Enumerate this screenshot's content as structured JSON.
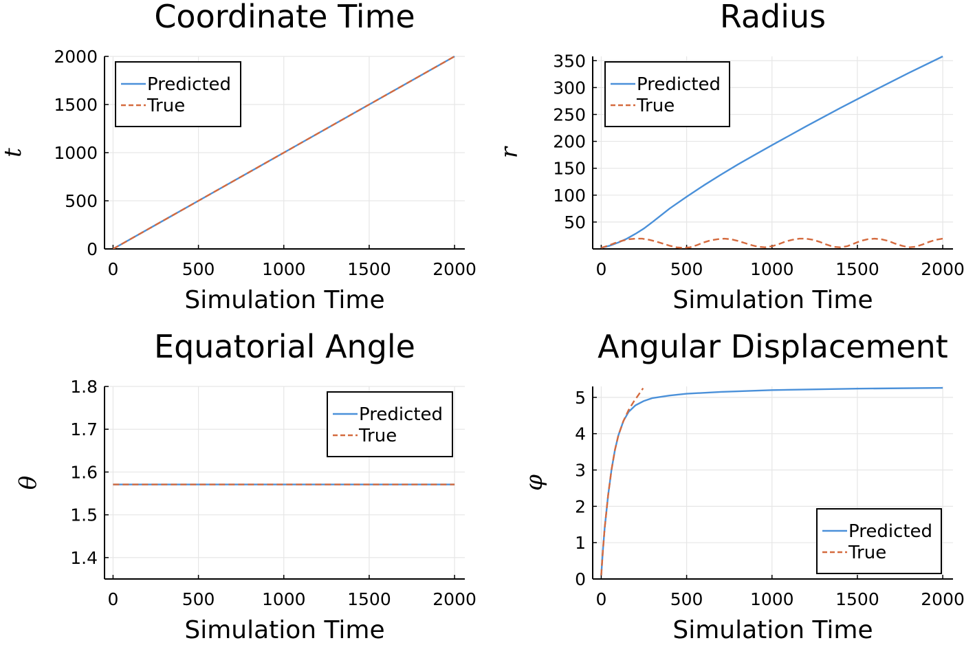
{
  "chart_data": [
    {
      "type": "line",
      "title": "Coordinate Time",
      "xlabel": "Simulation Time",
      "ylabel": "t",
      "xlim": [
        -50,
        2060
      ],
      "ylim": [
        0,
        2000
      ],
      "xticks": [
        0,
        500,
        1000,
        1500,
        2000
      ],
      "yticks": [
        0,
        500,
        1000,
        1500,
        2000
      ],
      "grid": true,
      "legend_position": "top-left",
      "series": [
        {
          "name": "Predicted",
          "color": "#4a90d9",
          "dash": "solid",
          "x": [
            0,
            500,
            1000,
            1500,
            2000
          ],
          "y": [
            0,
            500,
            1000,
            1500,
            2000
          ]
        },
        {
          "name": "True",
          "color": "#d46a3e",
          "dash": "dashed",
          "x": [
            0,
            500,
            1000,
            1500,
            2000
          ],
          "y": [
            0,
            500,
            1000,
            1500,
            2000
          ]
        }
      ]
    },
    {
      "type": "line",
      "title": "Radius",
      "xlabel": "Simulation Time",
      "ylabel": "r",
      "xlim": [
        -50,
        2060
      ],
      "ylim": [
        0,
        358
      ],
      "xticks": [
        0,
        500,
        1000,
        1500,
        2000
      ],
      "yticks": [
        50,
        100,
        150,
        200,
        250,
        300,
        350
      ],
      "grid": true,
      "legend_position": "top-left",
      "series": [
        {
          "name": "Predicted",
          "color": "#4a90d9",
          "dash": "solid",
          "x": [
            0,
            50,
            100,
            150,
            200,
            250,
            300,
            400,
            500,
            600,
            700,
            800,
            900,
            1000,
            1200,
            1400,
            1600,
            1800,
            2000
          ],
          "y": [
            2,
            6,
            12,
            19,
            28,
            38,
            50,
            75,
            97,
            118,
            138,
            157,
            175,
            193,
            228,
            262,
            295,
            327,
            358
          ]
        },
        {
          "name": "True",
          "color": "#d46a3e",
          "dash": "dashed",
          "x": [
            0,
            40,
            80,
            120,
            160,
            200,
            240,
            280,
            320,
            360,
            400,
            440,
            480,
            520,
            560,
            600,
            640,
            680,
            720,
            760,
            800,
            840,
            880,
            920,
            960,
            1000,
            1040,
            1080,
            1120,
            1160,
            1200,
            1240,
            1280,
            1320,
            1360,
            1400,
            1440,
            1480,
            1520,
            1560,
            1600,
            1640,
            1680,
            1720,
            1760,
            1800,
            1840,
            1880,
            1920,
            1960,
            2000
          ],
          "y": [
            2,
            6,
            11,
            15,
            18,
            19,
            19,
            17,
            14,
            10,
            6,
            3,
            2,
            3,
            7,
            12,
            16,
            18,
            19,
            18,
            15,
            11,
            7,
            4,
            3,
            5,
            9,
            14,
            17,
            19,
            19,
            17,
            13,
            8,
            4,
            3,
            5,
            10,
            15,
            18,
            19,
            18,
            15,
            10,
            6,
            3,
            4,
            8,
            13,
            17,
            19
          ]
        }
      ]
    },
    {
      "type": "line",
      "title": "Equatorial Angle",
      "xlabel": "Simulation Time",
      "ylabel": "θ",
      "xlim": [
        -50,
        2060
      ],
      "ylim": [
        1.35,
        1.8
      ],
      "xticks": [
        0,
        500,
        1000,
        1500,
        2000
      ],
      "yticks": [
        1.4,
        1.5,
        1.6,
        1.7,
        1.8
      ],
      "grid": true,
      "legend_position": "top-right",
      "series": [
        {
          "name": "Predicted",
          "color": "#4a90d9",
          "dash": "solid",
          "x": [
            0,
            2000
          ],
          "y": [
            1.5708,
            1.5708
          ]
        },
        {
          "name": "True",
          "color": "#d46a3e",
          "dash": "dashed",
          "x": [
            0,
            2000
          ],
          "y": [
            1.5708,
            1.5708
          ]
        }
      ]
    },
    {
      "type": "line",
      "title": "Angular Displacement",
      "xlabel": "Simulation Time",
      "ylabel": "φ",
      "xlim": [
        -50,
        2060
      ],
      "ylim": [
        0,
        5.3
      ],
      "xticks": [
        0,
        500,
        1000,
        1500,
        2000
      ],
      "yticks": [
        0,
        1,
        2,
        3,
        4,
        5
      ],
      "grid": true,
      "legend_position": "bottom-right",
      "series": [
        {
          "name": "Predicted",
          "color": "#4a90d9",
          "dash": "solid",
          "x": [
            0,
            10,
            20,
            40,
            60,
            80,
            100,
            130,
            160,
            200,
            250,
            300,
            400,
            500,
            700,
            1000,
            1500,
            2000
          ],
          "y": [
            0.1,
            0.8,
            1.4,
            2.3,
            3.0,
            3.55,
            3.95,
            4.35,
            4.6,
            4.78,
            4.9,
            4.98,
            5.05,
            5.1,
            5.15,
            5.2,
            5.24,
            5.26
          ]
        },
        {
          "name": "True",
          "color": "#d46a3e",
          "dash": "dashed",
          "x": [
            0,
            10,
            20,
            40,
            60,
            80,
            100,
            130,
            160,
            190,
            220,
            245
          ],
          "y": [
            0.1,
            0.8,
            1.4,
            2.3,
            3.0,
            3.55,
            3.95,
            4.35,
            4.65,
            4.88,
            5.08,
            5.25
          ]
        }
      ]
    }
  ]
}
